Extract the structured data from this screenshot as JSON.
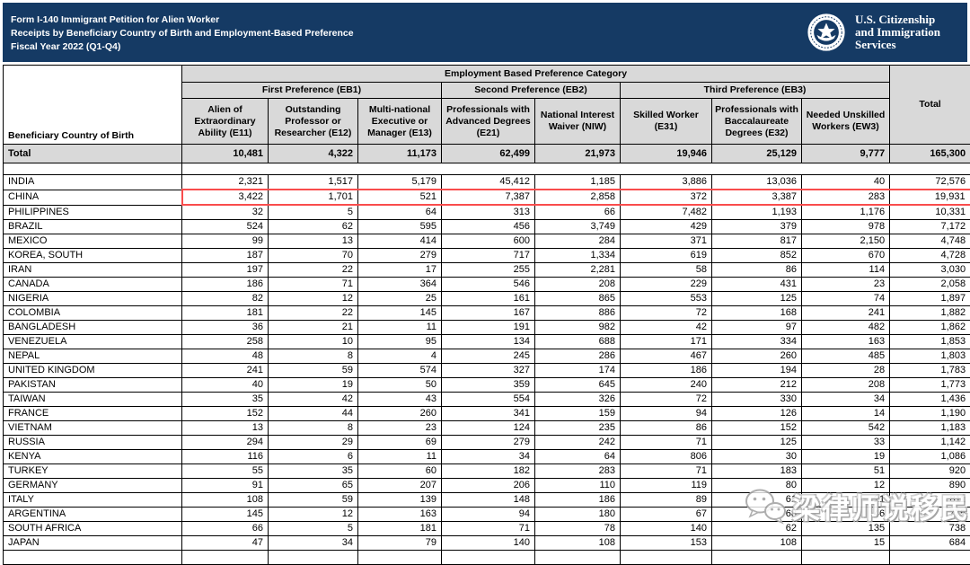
{
  "banner": {
    "bg_color": "#153a64",
    "title_lines": [
      "Form I-140 Immigrant Petition for Alien Worker",
      "Receipts by Beneficiary Country of Birth and Employment-Based Preference",
      "Fiscal Year 2022 (Q1-Q4)"
    ],
    "logo_text_lines": [
      "U.S. Citizenship",
      "and Immigration",
      "Services"
    ]
  },
  "table": {
    "corner_header": "Beneficiary Country of Birth",
    "group_header": "Employment Based Preference Category",
    "preference_groups": [
      {
        "label": "First Preference (EB1)",
        "span": 3
      },
      {
        "label": "Second Preference (EB2)",
        "span": 2
      },
      {
        "label": "Third Preference (EB3)",
        "span": 3
      }
    ],
    "column_headers": [
      "Alien of Extraordinary Ability (E11)",
      "Outstanding Professor or Researcher (E12)",
      "Multi-national Executive or Manager (E13)",
      "Professionals with Advanced Degrees (E21)",
      "National Interest Waiver (NIW)",
      "Skilled Worker (E31)",
      "Professionals with Baccalaureate Degrees (E32)",
      "Needed Unskilled Workers (EW3)"
    ],
    "total_header": "Total",
    "highlight_color": "#f94c4c",
    "total_row": {
      "label": "Total",
      "values": [
        "10,481",
        "4,322",
        "11,173",
        "62,499",
        "21,973",
        "19,946",
        "25,129",
        "9,777",
        "165,300"
      ]
    },
    "rows": [
      {
        "country": "INDIA",
        "values": [
          "2,321",
          "1,517",
          "5,179",
          "45,412",
          "1,185",
          "3,886",
          "13,036",
          "40",
          "72,576"
        ]
      },
      {
        "country": "CHINA",
        "highlighted": true,
        "values": [
          "3,422",
          "1,701",
          "521",
          "7,387",
          "2,858",
          "372",
          "3,387",
          "283",
          "19,931"
        ]
      },
      {
        "country": "PHILIPPINES",
        "values": [
          "32",
          "5",
          "64",
          "313",
          "66",
          "7,482",
          "1,193",
          "1,176",
          "10,331"
        ]
      },
      {
        "country": "BRAZIL",
        "values": [
          "524",
          "62",
          "595",
          "456",
          "3,749",
          "429",
          "379",
          "978",
          "7,172"
        ]
      },
      {
        "country": "MEXICO",
        "values": [
          "99",
          "13",
          "414",
          "600",
          "284",
          "371",
          "817",
          "2,150",
          "4,748"
        ]
      },
      {
        "country": "KOREA, SOUTH",
        "values": [
          "187",
          "70",
          "279",
          "717",
          "1,334",
          "619",
          "852",
          "670",
          "4,728"
        ]
      },
      {
        "country": "IRAN",
        "values": [
          "197",
          "22",
          "17",
          "255",
          "2,281",
          "58",
          "86",
          "114",
          "3,030"
        ]
      },
      {
        "country": "CANADA",
        "values": [
          "186",
          "71",
          "364",
          "546",
          "208",
          "229",
          "431",
          "23",
          "2,058"
        ]
      },
      {
        "country": "NIGERIA",
        "values": [
          "82",
          "12",
          "25",
          "161",
          "865",
          "553",
          "125",
          "74",
          "1,897"
        ]
      },
      {
        "country": "COLOMBIA",
        "values": [
          "181",
          "22",
          "145",
          "167",
          "886",
          "72",
          "168",
          "241",
          "1,882"
        ]
      },
      {
        "country": "BANGLADESH",
        "values": [
          "36",
          "21",
          "11",
          "191",
          "982",
          "42",
          "97",
          "482",
          "1,862"
        ]
      },
      {
        "country": "VENEZUELA",
        "values": [
          "258",
          "10",
          "95",
          "134",
          "688",
          "171",
          "334",
          "163",
          "1,853"
        ]
      },
      {
        "country": "NEPAL",
        "values": [
          "48",
          "8",
          "4",
          "245",
          "286",
          "467",
          "260",
          "485",
          "1,803"
        ]
      },
      {
        "country": "UNITED KINGDOM",
        "values": [
          "241",
          "59",
          "574",
          "327",
          "174",
          "186",
          "194",
          "28",
          "1,783"
        ]
      },
      {
        "country": "PAKISTAN",
        "values": [
          "40",
          "19",
          "50",
          "359",
          "645",
          "240",
          "212",
          "208",
          "1,773"
        ]
      },
      {
        "country": "TAIWAN",
        "values": [
          "35",
          "42",
          "43",
          "554",
          "326",
          "72",
          "330",
          "34",
          "1,436"
        ]
      },
      {
        "country": "FRANCE",
        "values": [
          "152",
          "44",
          "260",
          "341",
          "159",
          "94",
          "126",
          "14",
          "1,190"
        ]
      },
      {
        "country": "VIETNAM",
        "values": [
          "13",
          "8",
          "23",
          "124",
          "235",
          "86",
          "152",
          "542",
          "1,183"
        ]
      },
      {
        "country": "RUSSIA",
        "values": [
          "294",
          "29",
          "69",
          "279",
          "242",
          "71",
          "125",
          "33",
          "1,142"
        ]
      },
      {
        "country": "KENYA",
        "values": [
          "116",
          "6",
          "11",
          "34",
          "64",
          "806",
          "30",
          "19",
          "1,086"
        ]
      },
      {
        "country": "TURKEY",
        "values": [
          "55",
          "35",
          "60",
          "182",
          "283",
          "71",
          "183",
          "51",
          "920"
        ]
      },
      {
        "country": "GERMANY",
        "values": [
          "91",
          "65",
          "207",
          "206",
          "110",
          "119",
          "80",
          "12",
          "890"
        ]
      },
      {
        "country": "ITALY",
        "values": [
          "108",
          "59",
          "139",
          "148",
          "186",
          "89",
          "61",
          "21",
          "811"
        ]
      },
      {
        "country": "ARGENTINA",
        "values": [
          "145",
          "12",
          "163",
          "94",
          "180",
          "67",
          "68",
          "46",
          "775"
        ]
      },
      {
        "country": "SOUTH AFRICA",
        "values": [
          "66",
          "5",
          "181",
          "71",
          "78",
          "140",
          "62",
          "135",
          "738"
        ]
      },
      {
        "country": "JAPAN",
        "values": [
          "47",
          "34",
          "79",
          "140",
          "108",
          "153",
          "108",
          "15",
          "684"
        ]
      }
    ]
  },
  "watermark": {
    "text": "梁律师说移民",
    "icon": "wechat-icon"
  }
}
